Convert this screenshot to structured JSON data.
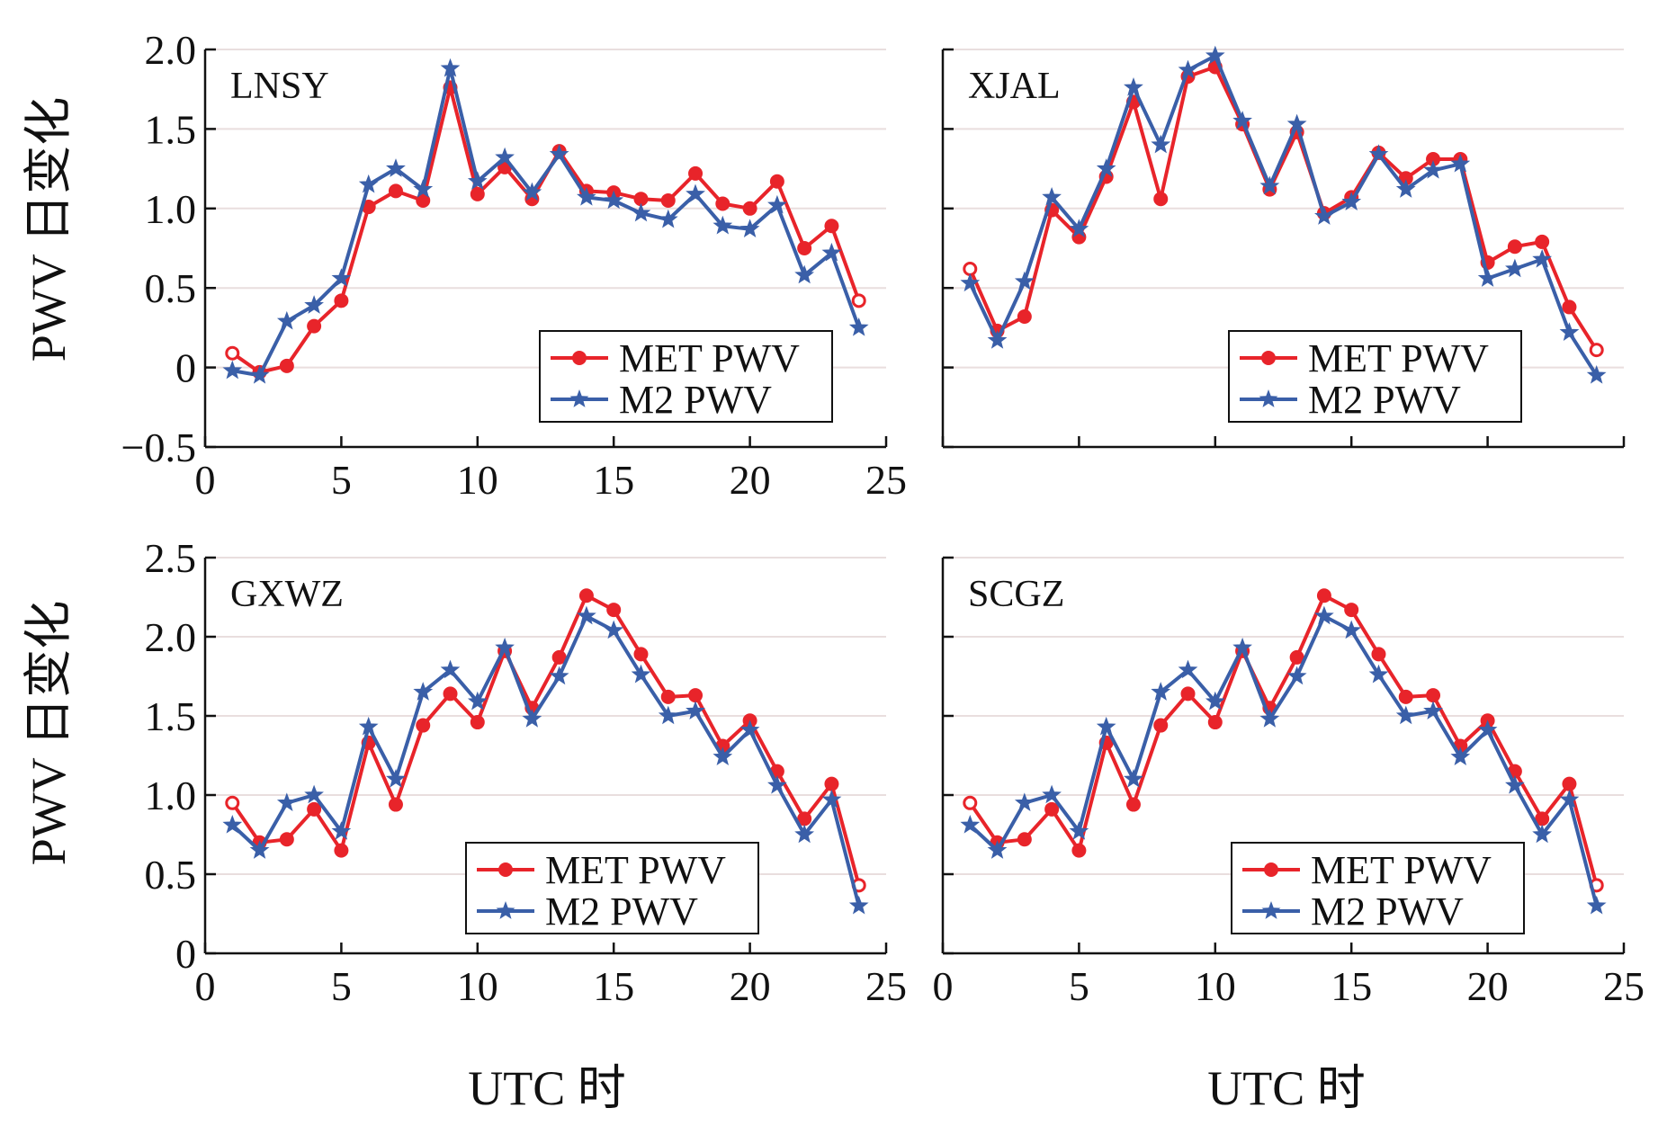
{
  "y_title": "PWV 日变化",
  "x_title": "UTC 时",
  "colors": {
    "met": "#e8242a",
    "m2": "#3a5fa8",
    "grid": "#e9dede",
    "axis": "#111111"
  },
  "chart_data": [
    {
      "type": "line",
      "panel": "LNSY",
      "xlim": [
        0,
        25
      ],
      "ylim": [
        -0.5,
        2.0
      ],
      "yticks": [
        -0.5,
        0,
        0.5,
        1.0,
        1.5,
        2.0
      ],
      "ytick_labels": [
        "−0.5",
        "0",
        "0.5",
        "1.0",
        "1.5",
        "2.0"
      ],
      "xticks": [
        0,
        5,
        10,
        15,
        20,
        25
      ],
      "xtick_labels": [
        "0",
        "5",
        "10",
        "15",
        "20",
        "25"
      ],
      "grid": "horizontal",
      "legend": "bottom-right",
      "x": [
        1,
        2,
        3,
        4,
        5,
        6,
        7,
        8,
        9,
        10,
        11,
        12,
        13,
        14,
        15,
        16,
        17,
        18,
        19,
        20,
        21,
        22,
        23,
        24
      ],
      "series": [
        {
          "name": "MET PWV",
          "values": [
            0.09,
            -0.03,
            0.01,
            0.26,
            0.42,
            1.01,
            1.11,
            1.05,
            1.76,
            1.09,
            1.26,
            1.06,
            1.36,
            1.11,
            1.1,
            1.06,
            1.05,
            1.22,
            1.03,
            1.0,
            1.17,
            0.75,
            0.89,
            0.42
          ]
        },
        {
          "name": "M2 PWV",
          "values": [
            -0.02,
            -0.05,
            0.29,
            0.39,
            0.56,
            1.15,
            1.25,
            1.12,
            1.88,
            1.17,
            1.32,
            1.1,
            1.34,
            1.07,
            1.05,
            0.97,
            0.93,
            1.09,
            0.89,
            0.87,
            1.02,
            0.58,
            0.72,
            0.25
          ]
        }
      ]
    },
    {
      "type": "line",
      "panel": "XJAL",
      "xlim": [
        0,
        25
      ],
      "ylim": [
        -0.5,
        2.0
      ],
      "yticks": [
        -0.5,
        0,
        0.5,
        1.0,
        1.5,
        2.0
      ],
      "ytick_labels": [],
      "xticks": [
        0,
        5,
        10,
        15,
        20,
        25
      ],
      "xtick_labels": [],
      "grid": "horizontal",
      "legend": "bottom-right",
      "x": [
        1,
        2,
        3,
        4,
        5,
        6,
        7,
        8,
        9,
        10,
        11,
        12,
        13,
        14,
        15,
        16,
        17,
        18,
        19,
        20,
        21,
        22,
        23,
        24
      ],
      "series": [
        {
          "name": "MET PWV",
          "values": [
            0.62,
            0.23,
            0.32,
            0.99,
            0.82,
            1.2,
            1.67,
            1.06,
            1.83,
            1.89,
            1.53,
            1.12,
            1.48,
            0.97,
            1.07,
            1.35,
            1.19,
            1.31,
            1.31,
            0.66,
            0.76,
            0.79,
            0.38,
            0.11
          ]
        },
        {
          "name": "M2 PWV",
          "values": [
            0.53,
            0.17,
            0.54,
            1.07,
            0.87,
            1.25,
            1.76,
            1.4,
            1.87,
            1.96,
            1.55,
            1.14,
            1.53,
            0.95,
            1.04,
            1.34,
            1.12,
            1.24,
            1.28,
            0.56,
            0.62,
            0.68,
            0.22,
            -0.05
          ]
        }
      ]
    },
    {
      "type": "line",
      "panel": "GXWZ",
      "xlim": [
        0,
        25
      ],
      "ylim": [
        0,
        2.5
      ],
      "yticks": [
        0,
        0.5,
        1.0,
        1.5,
        2.0,
        2.5
      ],
      "ytick_labels": [
        "0",
        "0.5",
        "1.0",
        "1.5",
        "2.0",
        "2.5"
      ],
      "xticks": [
        0,
        5,
        10,
        15,
        20,
        25
      ],
      "xtick_labels": [
        "0",
        "5",
        "10",
        "15",
        "20",
        "25"
      ],
      "grid": "horizontal",
      "legend": "bottom-right",
      "x": [
        1,
        2,
        3,
        4,
        5,
        6,
        7,
        8,
        9,
        10,
        11,
        12,
        13,
        14,
        15,
        16,
        17,
        18,
        19,
        20,
        21,
        22,
        23,
        24
      ],
      "series": [
        {
          "name": "MET PWV",
          "values": [
            0.95,
            0.7,
            0.72,
            0.91,
            0.65,
            1.33,
            0.94,
            1.44,
            1.64,
            1.46,
            1.91,
            1.55,
            1.87,
            2.26,
            2.17,
            1.89,
            1.62,
            1.63,
            1.31,
            1.47,
            1.15,
            0.85,
            1.07,
            0.43
          ]
        },
        {
          "name": "M2 PWV",
          "values": [
            0.81,
            0.65,
            0.95,
            1.0,
            0.77,
            1.43,
            1.1,
            1.65,
            1.79,
            1.59,
            1.93,
            1.48,
            1.75,
            2.13,
            2.04,
            1.76,
            1.5,
            1.53,
            1.24,
            1.41,
            1.06,
            0.75,
            0.97,
            0.3
          ]
        }
      ]
    },
    {
      "type": "line",
      "panel": "SCGZ",
      "xlim": [
        0,
        25
      ],
      "ylim": [
        0,
        2.5
      ],
      "yticks": [
        0,
        0.5,
        1.0,
        1.5,
        2.0,
        2.5
      ],
      "ytick_labels": [],
      "xticks": [
        0,
        5,
        10,
        15,
        20,
        25
      ],
      "xtick_labels": [
        "0",
        "5",
        "10",
        "15",
        "20",
        "25"
      ],
      "grid": "horizontal",
      "legend": "bottom-right",
      "x": [
        1,
        2,
        3,
        4,
        5,
        6,
        7,
        8,
        9,
        10,
        11,
        12,
        13,
        14,
        15,
        16,
        17,
        18,
        19,
        20,
        21,
        22,
        23,
        24
      ],
      "series": [
        {
          "name": "MET PWV",
          "values": [
            0.95,
            0.7,
            0.72,
            0.91,
            0.65,
            1.33,
            0.94,
            1.44,
            1.64,
            1.46,
            1.91,
            1.55,
            1.87,
            2.26,
            2.17,
            1.89,
            1.62,
            1.63,
            1.31,
            1.47,
            1.15,
            0.85,
            1.07,
            0.43
          ]
        },
        {
          "name": "M2 PWV",
          "values": [
            0.81,
            0.65,
            0.95,
            1.0,
            0.77,
            1.43,
            1.1,
            1.65,
            1.79,
            1.59,
            1.93,
            1.48,
            1.75,
            2.13,
            2.04,
            1.76,
            1.5,
            1.53,
            1.24,
            1.41,
            1.06,
            0.75,
            0.97,
            0.3
          ]
        }
      ]
    }
  ]
}
